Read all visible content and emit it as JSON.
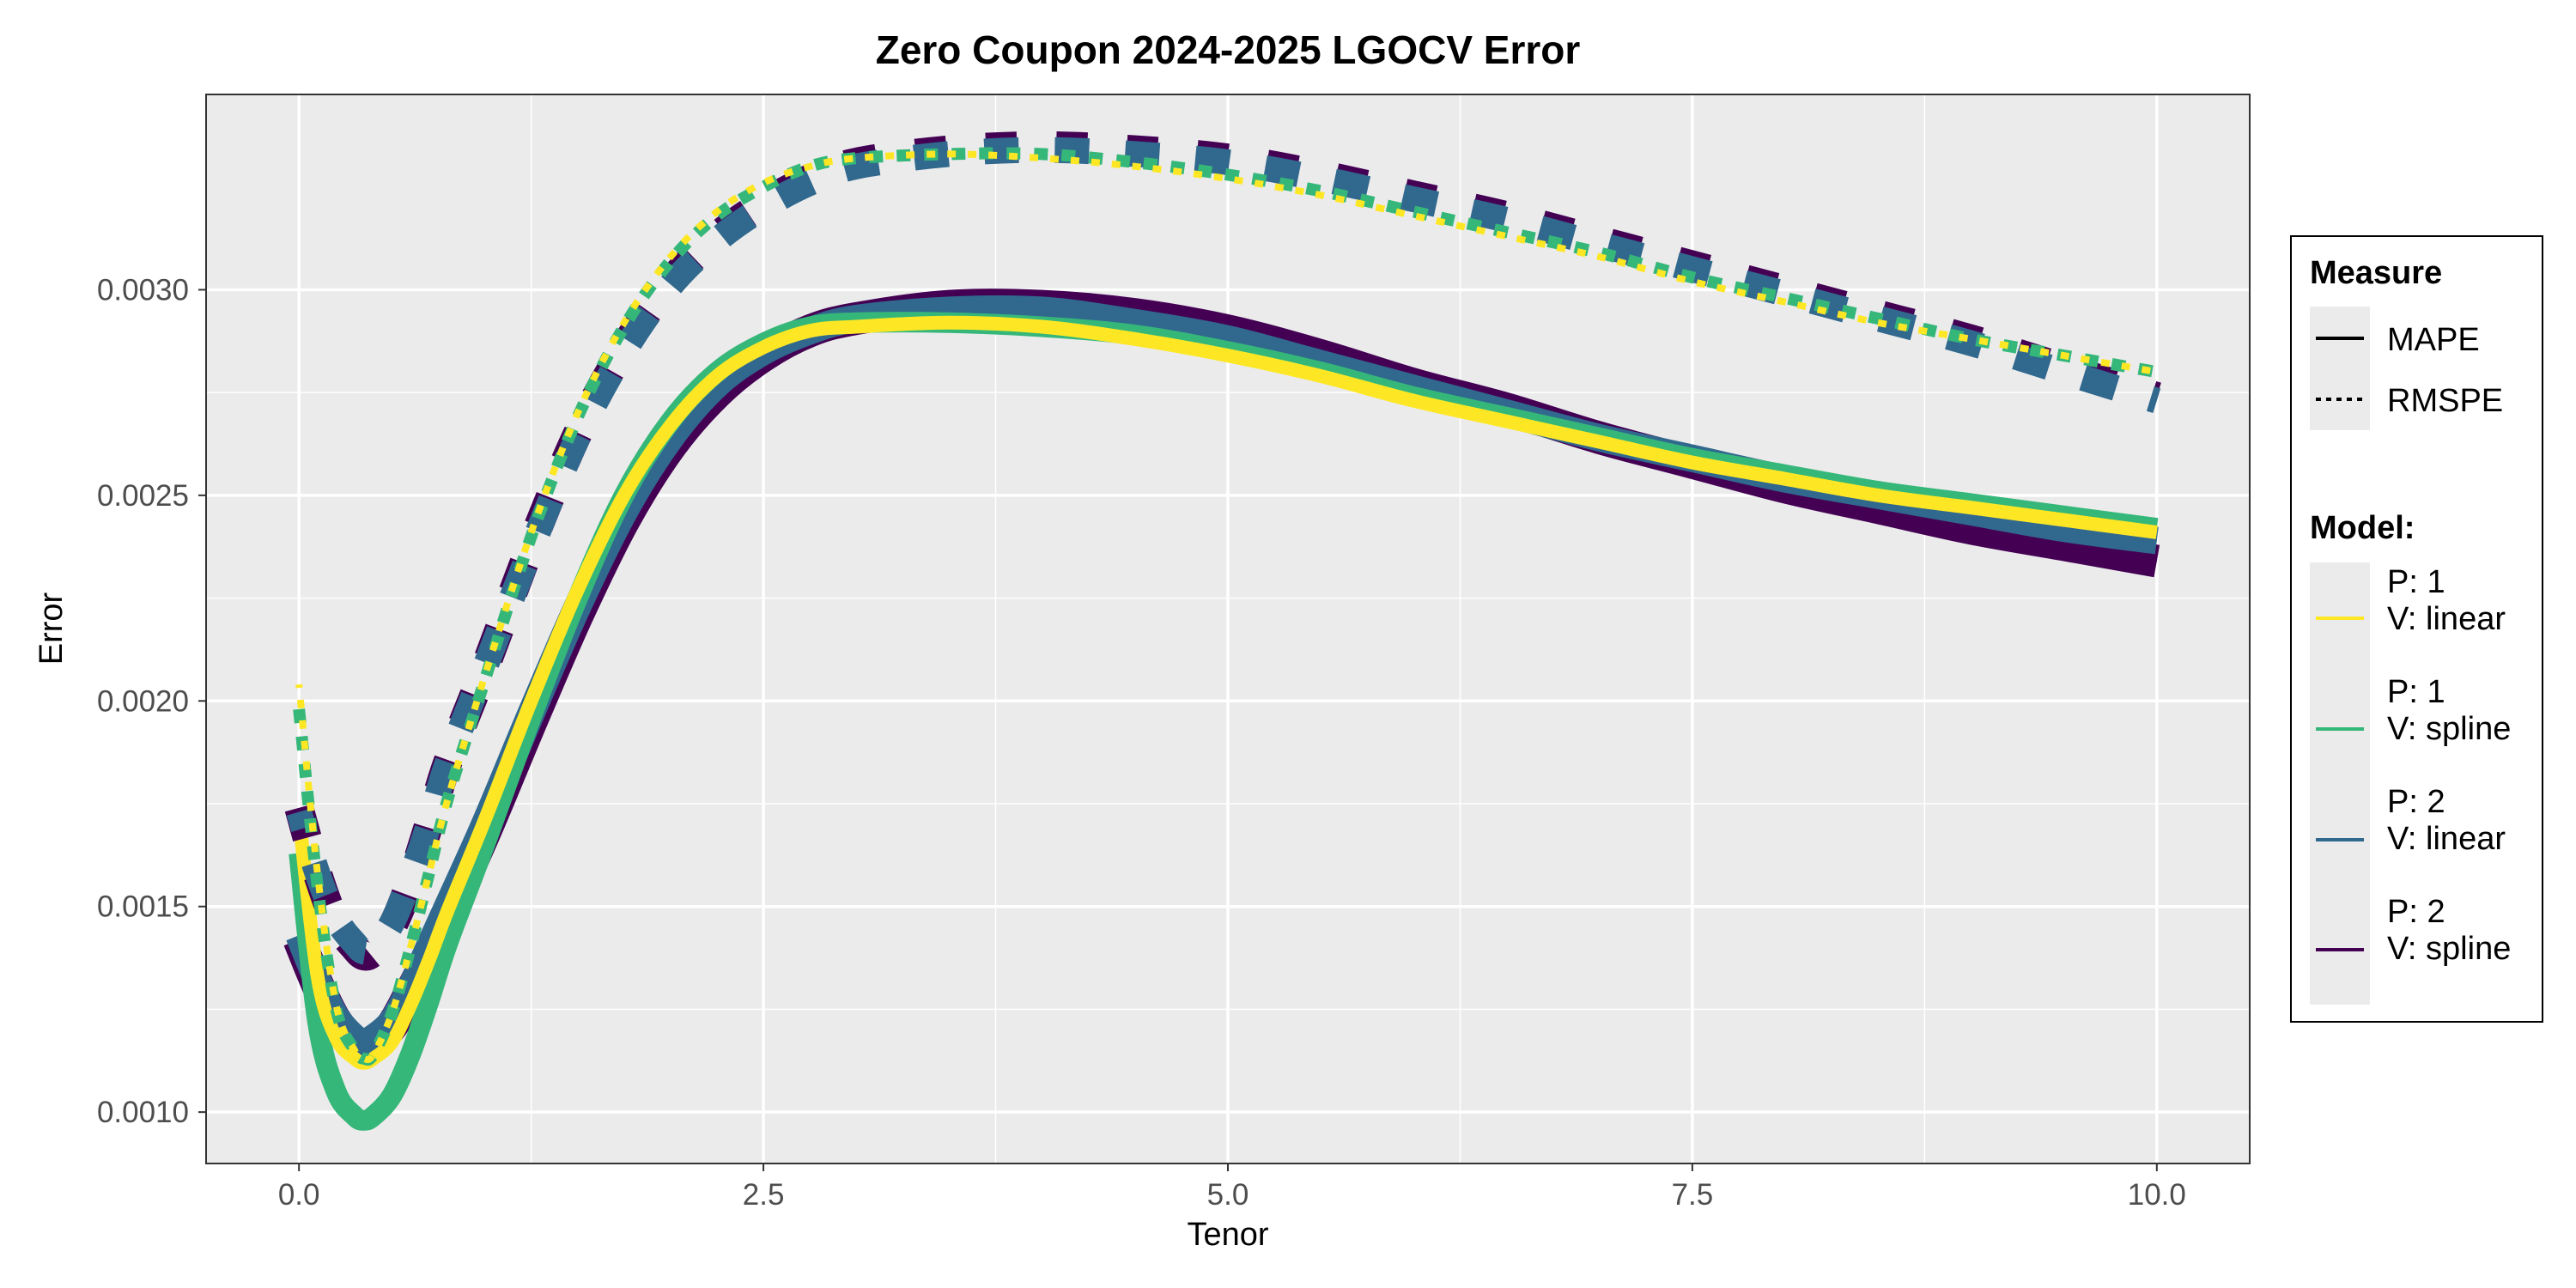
{
  "chart_data": {
    "type": "line",
    "title": "Zero Coupon 2024-2025 LGOCV Error",
    "xlabel": "Tenor",
    "ylabel": "Error",
    "xlim": [
      -0.5,
      10.5
    ],
    "ylim": [
      0.000875,
      0.003475
    ],
    "x_ticks": [
      0,
      2.5,
      5,
      7.5,
      10
    ],
    "x_tick_labels": [
      "0.0",
      "2.5",
      "5.0",
      "7.5",
      "10.0"
    ],
    "y_ticks": [
      0.001,
      0.0015,
      0.002,
      0.0025,
      0.003
    ],
    "y_tick_labels": [
      "0.0010",
      "0.0015",
      "0.0020",
      "0.0025",
      "0.0030"
    ],
    "grid": true,
    "legend_position": "right",
    "x": [
      0,
      0.1,
      0.2,
      0.3,
      0.35,
      0.4,
      0.5,
      0.6,
      0.7,
      0.8,
      1.0,
      1.25,
      1.5,
      1.75,
      2.0,
      2.25,
      2.5,
      2.75,
      3.0,
      3.5,
      4.0,
      4.5,
      5.0,
      5.5,
      6.0,
      6.5,
      7.0,
      7.5,
      8.0,
      8.5,
      9.0,
      9.5,
      10.0
    ],
    "legend": {
      "measure_title": "Measure",
      "measure_items": [
        {
          "label": "MAPE",
          "linetype": "solid"
        },
        {
          "label": "RMSPE",
          "linetype": "dotted"
        }
      ],
      "model_title": "Model:",
      "model_items": [
        {
          "line1": "P: 1",
          "line2": "V: linear",
          "color": "#FDE725"
        },
        {
          "line1": "P: 1",
          "line2": "V: spline",
          "color": "#35B779"
        },
        {
          "line1": "P: 2",
          "line2": "V: linear",
          "color": "#31688E"
        },
        {
          "line1": "P: 2",
          "line2": "V: spline",
          "color": "#440154"
        }
      ]
    },
    "series": [
      {
        "measure": "MAPE",
        "model": "P: 2 V: spline",
        "color": "#440154",
        "values": [
          0.00142,
          0.00131,
          0.00122,
          0.00117,
          0.00116,
          0.00117,
          0.00121,
          0.00129,
          0.00138,
          0.00148,
          0.00168,
          0.00195,
          0.00221,
          0.00244,
          0.00262,
          0.00275,
          0.00284,
          0.0029,
          0.00293,
          0.00296,
          0.00296,
          0.00294,
          0.0029,
          0.00284,
          0.00277,
          0.00271,
          0.00264,
          0.00258,
          0.00252,
          0.00247,
          0.00242,
          0.00238,
          0.00234
        ]
      },
      {
        "measure": "MAPE",
        "model": "P: 2 V: linear",
        "color": "#31688E",
        "values": [
          0.00143,
          0.00132,
          0.00123,
          0.00118,
          0.00117,
          0.00118,
          0.00122,
          0.0013,
          0.0014,
          0.0015,
          0.0017,
          0.00197,
          0.00223,
          0.00246,
          0.00264,
          0.00277,
          0.00285,
          0.0029,
          0.00293,
          0.00295,
          0.00295,
          0.00292,
          0.00288,
          0.00282,
          0.00276,
          0.0027,
          0.00264,
          0.00259,
          0.00254,
          0.0025,
          0.00246,
          0.00242,
          0.00239
        ]
      },
      {
        "measure": "MAPE",
        "model": "P: 1 V: spline",
        "color": "#35B779",
        "values": [
          0.00163,
          0.00122,
          0.00105,
          0.00099,
          0.00098,
          0.00099,
          0.00104,
          0.00114,
          0.00127,
          0.00141,
          0.00165,
          0.00196,
          0.00225,
          0.0025,
          0.00268,
          0.0028,
          0.00287,
          0.00291,
          0.00292,
          0.00292,
          0.00291,
          0.00289,
          0.00285,
          0.0028,
          0.00274,
          0.00269,
          0.00264,
          0.00259,
          0.00255,
          0.00251,
          0.00248,
          0.00245,
          0.00242
        ]
      },
      {
        "measure": "MAPE",
        "model": "P: 1 V: linear",
        "color": "#FDE725",
        "values": [
          0.00172,
          0.00133,
          0.00118,
          0.00113,
          0.00112,
          0.00113,
          0.00117,
          0.00126,
          0.00137,
          0.00149,
          0.00171,
          0.002,
          0.00227,
          0.0025,
          0.00267,
          0.00279,
          0.00286,
          0.0029,
          0.00291,
          0.00292,
          0.00291,
          0.00288,
          0.00284,
          0.00279,
          0.00273,
          0.00268,
          0.00263,
          0.00258,
          0.00254,
          0.0025,
          0.00247,
          0.00244,
          0.00241
        ]
      },
      {
        "measure": "RMSPE",
        "model": "P: 2 V: spline",
        "color": "#440154",
        "values": [
          0.00174,
          0.00158,
          0.00146,
          0.0014,
          0.00138,
          0.00139,
          0.00145,
          0.00156,
          0.0017,
          0.00185,
          0.00208,
          0.00238,
          0.00265,
          0.00286,
          0.00302,
          0.00313,
          0.00321,
          0.00327,
          0.00331,
          0.00334,
          0.00335,
          0.00334,
          0.00332,
          0.00328,
          0.00323,
          0.00318,
          0.00312,
          0.00306,
          0.003,
          0.00294,
          0.00288,
          0.00281,
          0.00274
        ]
      },
      {
        "measure": "RMSPE",
        "model": "P: 2 V: linear",
        "color": "#31688E",
        "values": [
          0.00173,
          0.00158,
          0.00147,
          0.00141,
          0.00139,
          0.0014,
          0.00146,
          0.00157,
          0.0017,
          0.00185,
          0.00208,
          0.00237,
          0.00264,
          0.00285,
          0.00301,
          0.00312,
          0.0032,
          0.00326,
          0.0033,
          0.00333,
          0.00334,
          0.00333,
          0.00331,
          0.00327,
          0.00322,
          0.00317,
          0.00311,
          0.00305,
          0.00299,
          0.00293,
          0.00287,
          0.0028,
          0.00273
        ]
      },
      {
        "measure": "RMSPE",
        "model": "P: 1 V: spline",
        "color": "#35B779",
        "values": [
          0.00198,
          0.00155,
          0.00125,
          0.00115,
          0.00113,
          0.00114,
          0.00124,
          0.0014,
          0.00158,
          0.00176,
          0.00205,
          0.0024,
          0.00269,
          0.00291,
          0.00307,
          0.00318,
          0.00325,
          0.0033,
          0.00332,
          0.00333,
          0.00333,
          0.00331,
          0.00328,
          0.00324,
          0.00319,
          0.00314,
          0.00309,
          0.00303,
          0.00298,
          0.00293,
          0.00288,
          0.00284,
          0.0028
        ]
      },
      {
        "measure": "RMSPE",
        "model": "P: 1 V: linear",
        "color": "#FDE725",
        "values": [
          0.00204,
          0.00158,
          0.00126,
          0.00115,
          0.00113,
          0.00114,
          0.00124,
          0.0014,
          0.00158,
          0.00176,
          0.00206,
          0.00241,
          0.0027,
          0.00292,
          0.00308,
          0.00319,
          0.00326,
          0.0033,
          0.00332,
          0.00333,
          0.00332,
          0.0033,
          0.00327,
          0.00323,
          0.00318,
          0.00313,
          0.00308,
          0.00302,
          0.00297,
          0.00292,
          0.00288,
          0.00284,
          0.0028
        ]
      }
    ]
  }
}
